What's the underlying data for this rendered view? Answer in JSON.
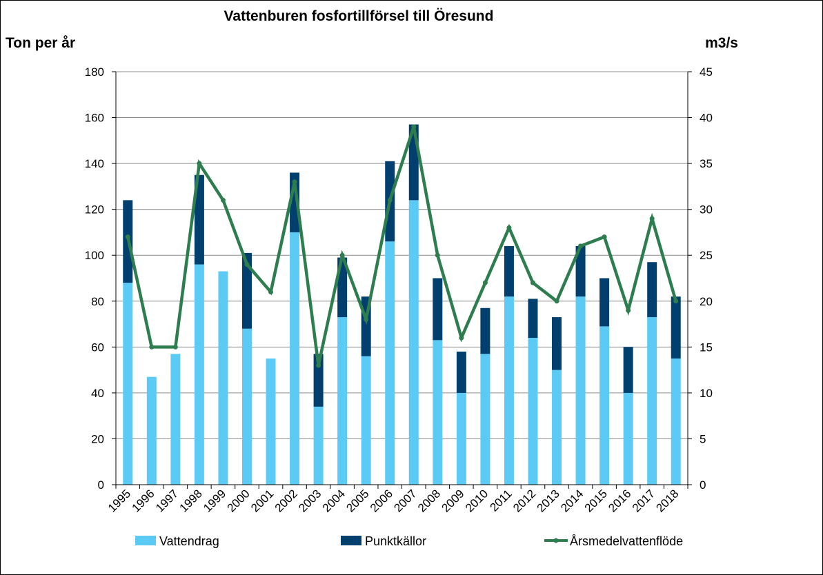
{
  "chart_data": {
    "type": "bar",
    "title": "Vattenburen fosfortillförsel till Öresund",
    "ylabel": "Ton per år",
    "y2label": "m3/s",
    "ylim": [
      0,
      180
    ],
    "y2lim": [
      0,
      45
    ],
    "yticks": [
      0,
      20,
      40,
      60,
      80,
      100,
      120,
      140,
      160,
      180
    ],
    "y2ticks": [
      0,
      5,
      10,
      15,
      20,
      25,
      30,
      35,
      40,
      45
    ],
    "grid": true,
    "stacked": true,
    "legend_position": "bottom",
    "categories": [
      "1995",
      "1996",
      "1997",
      "1998",
      "1999",
      "2000",
      "2001",
      "2002",
      "2003",
      "2004",
      "2005",
      "2006",
      "2007",
      "2008",
      "2009",
      "2010",
      "2011",
      "2012",
      "2013",
      "2014",
      "2015",
      "2016",
      "2017",
      "2018"
    ],
    "series": [
      {
        "name": "Vattendrag",
        "kind": "bar",
        "axis": "left",
        "color": "#5BCBF5",
        "values": [
          88,
          47,
          57,
          96,
          93,
          68,
          55,
          110,
          34,
          73,
          56,
          106,
          124,
          63,
          40,
          57,
          82,
          64,
          50,
          82,
          69,
          40,
          73,
          55
        ]
      },
      {
        "name": "Punktkällor",
        "kind": "bar",
        "axis": "left",
        "color": "#003F6E",
        "values": [
          36,
          0,
          0,
          39,
          0,
          33,
          0,
          26,
          23,
          26,
          26,
          35,
          33,
          27,
          18,
          20,
          22,
          17,
          23,
          22,
          21,
          20,
          24,
          27
        ]
      },
      {
        "name": "Årsmedelvattenflöde",
        "kind": "line",
        "axis": "right",
        "color": "#2E7D4F",
        "values": [
          27,
          15,
          15,
          35,
          31,
          24,
          21,
          33,
          13,
          25,
          18,
          31,
          39,
          25,
          16,
          22,
          28,
          22,
          20,
          26,
          27,
          19,
          29,
          20
        ]
      }
    ]
  }
}
